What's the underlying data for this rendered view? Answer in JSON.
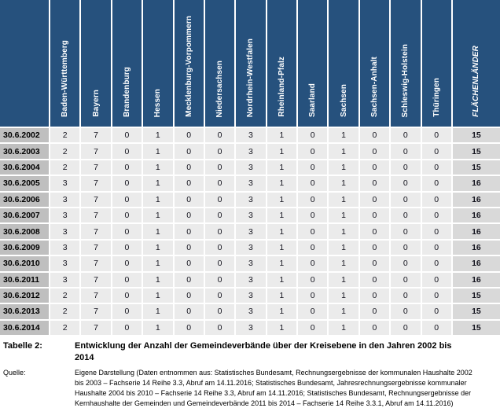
{
  "colors": {
    "header_bg": "#26517D",
    "row_label_bg": "#BFBFBF",
    "cell_bg": "#EBEBEB",
    "total_bg": "#D9D9D9",
    "grid": "#FFFFFF",
    "header_text": "#FFFFFF"
  },
  "chart_data": {
    "type": "table",
    "title": "Entwicklung der Anzahl der Gemeindeverbände über der Kreisebene in den Jahren 2002 bis 2014",
    "columns": [
      "Baden-Württemberg",
      "Bayern",
      "Brandenburg",
      "Hessen",
      "Mecklenburg-Vorpommern",
      "Niedersachsen",
      "Nordrhein-Westfalen",
      "Rheinland-Pfalz",
      "Saarland",
      "Sachsen",
      "Sachsen-Anhalt",
      "Schleswig-Holstein",
      "Thüringen"
    ],
    "total_column": "FLÄCHENLÄNDER",
    "rows": [
      {
        "date": "30.6.2002",
        "values": [
          2,
          7,
          0,
          1,
          0,
          0,
          3,
          1,
          0,
          1,
          0,
          0,
          0
        ],
        "total": 15
      },
      {
        "date": "30.6.2003",
        "values": [
          2,
          7,
          0,
          1,
          0,
          0,
          3,
          1,
          0,
          1,
          0,
          0,
          0
        ],
        "total": 15
      },
      {
        "date": "30.6.2004",
        "values": [
          2,
          7,
          0,
          1,
          0,
          0,
          3,
          1,
          0,
          1,
          0,
          0,
          0
        ],
        "total": 15
      },
      {
        "date": "30.6.2005",
        "values": [
          3,
          7,
          0,
          1,
          0,
          0,
          3,
          1,
          0,
          1,
          0,
          0,
          0
        ],
        "total": 16
      },
      {
        "date": "30.6.2006",
        "values": [
          3,
          7,
          0,
          1,
          0,
          0,
          3,
          1,
          0,
          1,
          0,
          0,
          0
        ],
        "total": 16
      },
      {
        "date": "30.6.2007",
        "values": [
          3,
          7,
          0,
          1,
          0,
          0,
          3,
          1,
          0,
          1,
          0,
          0,
          0
        ],
        "total": 16
      },
      {
        "date": "30.6.2008",
        "values": [
          3,
          7,
          0,
          1,
          0,
          0,
          3,
          1,
          0,
          1,
          0,
          0,
          0
        ],
        "total": 16
      },
      {
        "date": "30.6.2009",
        "values": [
          3,
          7,
          0,
          1,
          0,
          0,
          3,
          1,
          0,
          1,
          0,
          0,
          0
        ],
        "total": 16
      },
      {
        "date": "30.6.2010",
        "values": [
          3,
          7,
          0,
          1,
          0,
          0,
          3,
          1,
          0,
          1,
          0,
          0,
          0
        ],
        "total": 16
      },
      {
        "date": "30.6.2011",
        "values": [
          3,
          7,
          0,
          1,
          0,
          0,
          3,
          1,
          0,
          1,
          0,
          0,
          0
        ],
        "total": 16
      },
      {
        "date": "30.6.2012",
        "values": [
          2,
          7,
          0,
          1,
          0,
          0,
          3,
          1,
          0,
          1,
          0,
          0,
          0
        ],
        "total": 15
      },
      {
        "date": "30.6.2013",
        "values": [
          2,
          7,
          0,
          1,
          0,
          0,
          3,
          1,
          0,
          1,
          0,
          0,
          0
        ],
        "total": 15
      },
      {
        "date": "30.6.2014",
        "values": [
          2,
          7,
          0,
          1,
          0,
          0,
          3,
          1,
          0,
          1,
          0,
          0,
          0
        ],
        "total": 15
      }
    ]
  },
  "caption": {
    "label": "Tabelle 2:",
    "text": "Entwicklung der Anzahl der Gemeindeverbände über der Kreisebene in den Jahren 2002 bis 2014"
  },
  "source": {
    "label": "Quelle:",
    "text": "Eigene Darstellung (Daten entnommen aus: Statistisches Bundesamt, Rechnungsergebnisse der kommunalen Haushalte 2002 bis 2003 – Fachserie 14 Reihe 3.3, Abruf am 14.11.2016; Statistisches Bundesamt, Jahresrechnungsergebnisse kommunaler Haushalte 2004 bis 2010 – Fachserie 14 Reihe 3.3, Abruf am 14.11.2016; Statistisches Bundesamt, Rechnungsergebnisse der Kernhaushalte der Gemeinden und Gemeindeverbände 2011 bis 2014 – Fachserie 14 Reihe 3.3.1, Abruf am 14.11.2016)"
  },
  "layout": {
    "label_col_width": 64,
    "state_col_width": 39.38,
    "total_col_width": 60
  }
}
